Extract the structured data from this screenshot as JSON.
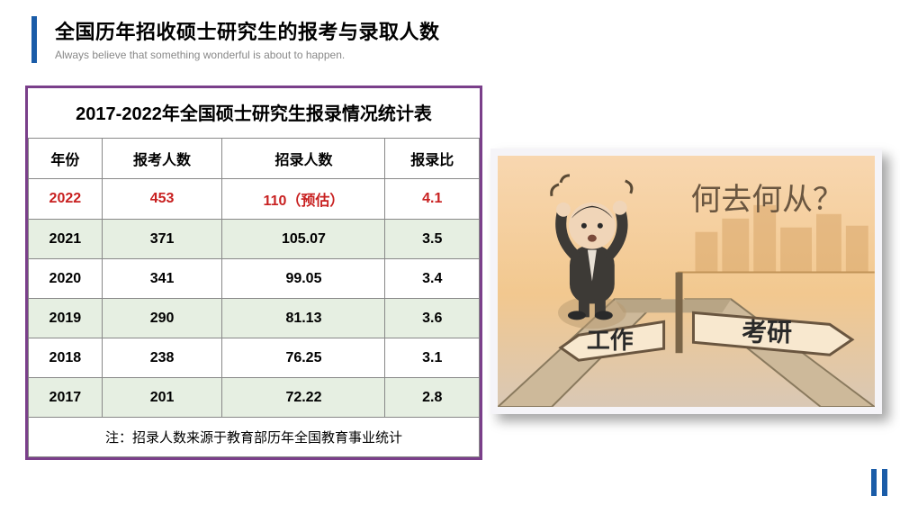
{
  "header": {
    "title": "全国历年招收硕士研究生的报考与录取人数",
    "subtitle": "Always believe that something wonderful is about to happen.",
    "accent_color": "#1a5ca8"
  },
  "table": {
    "title": "2017-2022年全国硕士研究生报录情况统计表",
    "border_color": "#7a3f8a",
    "columns": [
      "年份",
      "报考人数",
      "招录人数",
      "报录比"
    ],
    "highlight_color": "#c82020",
    "alt_bg": "#e6efe2",
    "rows": [
      {
        "style": "highlight",
        "cells": [
          "2022",
          "453",
          "110（预估）",
          "4.1"
        ]
      },
      {
        "style": "alt",
        "cells": [
          "2021",
          "371",
          "105.07",
          "3.5"
        ]
      },
      {
        "style": "plain",
        "cells": [
          "2020",
          "341",
          "99.05",
          "3.4"
        ]
      },
      {
        "style": "alt",
        "cells": [
          "2019",
          "290",
          "81.13",
          "3.6"
        ]
      },
      {
        "style": "plain",
        "cells": [
          "2018",
          "238",
          "76.25",
          "3.1"
        ]
      },
      {
        "style": "alt",
        "cells": [
          "2017",
          "201",
          "72.22",
          "2.8"
        ]
      }
    ],
    "footnote": "注：招录人数来源于教育部历年全国教育事业统计"
  },
  "illustration": {
    "question_text": "何去何从？",
    "sign_left": "工作",
    "sign_right": "考研",
    "bg_top": "#f8d7b0",
    "bg_bottom": "#d9c8b5",
    "city_color": "#d9a76a",
    "road_color": "#c9b496",
    "suit_color": "#3d3a36",
    "skin_color": "#f0d5b8",
    "hair_color": "#2d2925",
    "sign_fill": "#f8e8cf",
    "sign_stroke": "#6a5640"
  }
}
